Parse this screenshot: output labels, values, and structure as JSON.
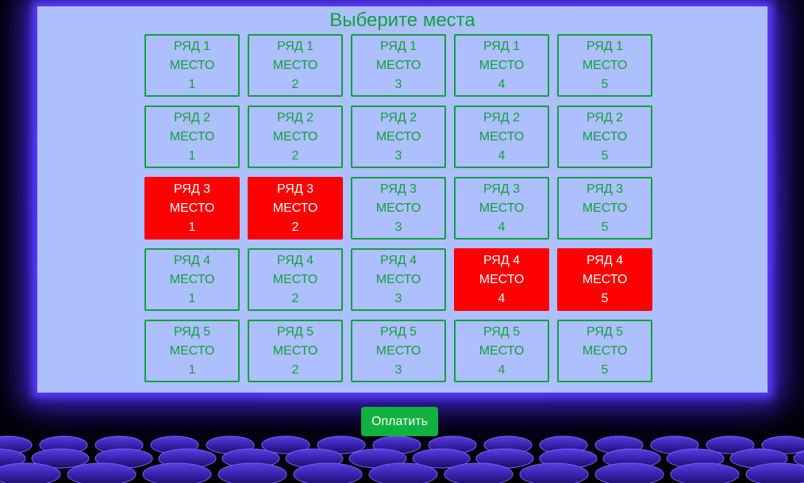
{
  "title": "Выберите места",
  "pay_button": "Оплатить",
  "colors": {
    "free_seat": "#10a040",
    "taken_seat": "#ff0000",
    "screen": "#aebffe"
  },
  "seats": [
    {
      "row_label": "РЯД 1",
      "place_label": "МЕСТО",
      "number": "1",
      "taken": false
    },
    {
      "row_label": "РЯД 1",
      "place_label": "МЕСТО",
      "number": "2",
      "taken": false
    },
    {
      "row_label": "РЯД 1",
      "place_label": "МЕСТО",
      "number": "3",
      "taken": false
    },
    {
      "row_label": "РЯД 1",
      "place_label": "МЕСТО",
      "number": "4",
      "taken": false
    },
    {
      "row_label": "РЯД 1",
      "place_label": "МЕСТО",
      "number": "5",
      "taken": false
    },
    {
      "row_label": "РЯД 2",
      "place_label": "МЕСТО",
      "number": "1",
      "taken": false
    },
    {
      "row_label": "РЯД 2",
      "place_label": "МЕСТО",
      "number": "2",
      "taken": false
    },
    {
      "row_label": "РЯД 2",
      "place_label": "МЕСТО",
      "number": "3",
      "taken": false
    },
    {
      "row_label": "РЯД 2",
      "place_label": "МЕСТО",
      "number": "4",
      "taken": false
    },
    {
      "row_label": "РЯД 2",
      "place_label": "МЕСТО",
      "number": "5",
      "taken": false
    },
    {
      "row_label": "РЯД 3",
      "place_label": "МЕСТО",
      "number": "1",
      "taken": true
    },
    {
      "row_label": "РЯД 3",
      "place_label": "МЕСТО",
      "number": "2",
      "taken": true
    },
    {
      "row_label": "РЯД 3",
      "place_label": "МЕСТО",
      "number": "3",
      "taken": false
    },
    {
      "row_label": "РЯД 3",
      "place_label": "МЕСТО",
      "number": "4",
      "taken": false
    },
    {
      "row_label": "РЯД 3",
      "place_label": "МЕСТО",
      "number": "5",
      "taken": false
    },
    {
      "row_label": "РЯД 4",
      "place_label": "МЕСТО",
      "number": "1",
      "taken": false
    },
    {
      "row_label": "РЯД 4",
      "place_label": "МЕСТО",
      "number": "2",
      "taken": false
    },
    {
      "row_label": "РЯД 4",
      "place_label": "МЕСТО",
      "number": "3",
      "taken": false
    },
    {
      "row_label": "РЯД 4",
      "place_label": "МЕСТО",
      "number": "4",
      "taken": true
    },
    {
      "row_label": "РЯД 4",
      "place_label": "МЕСТО",
      "number": "5",
      "taken": true
    },
    {
      "row_label": "РЯД 5",
      "place_label": "МЕСТО",
      "number": "1",
      "taken": false
    },
    {
      "row_label": "РЯД 5",
      "place_label": "МЕСТО",
      "number": "2",
      "taken": false
    },
    {
      "row_label": "РЯД 5",
      "place_label": "МЕСТО",
      "number": "3",
      "taken": false
    },
    {
      "row_label": "РЯД 5",
      "place_label": "МЕСТО",
      "number": "4",
      "taken": false
    },
    {
      "row_label": "РЯД 5",
      "place_label": "МЕСТО",
      "number": "5",
      "taken": false
    }
  ]
}
